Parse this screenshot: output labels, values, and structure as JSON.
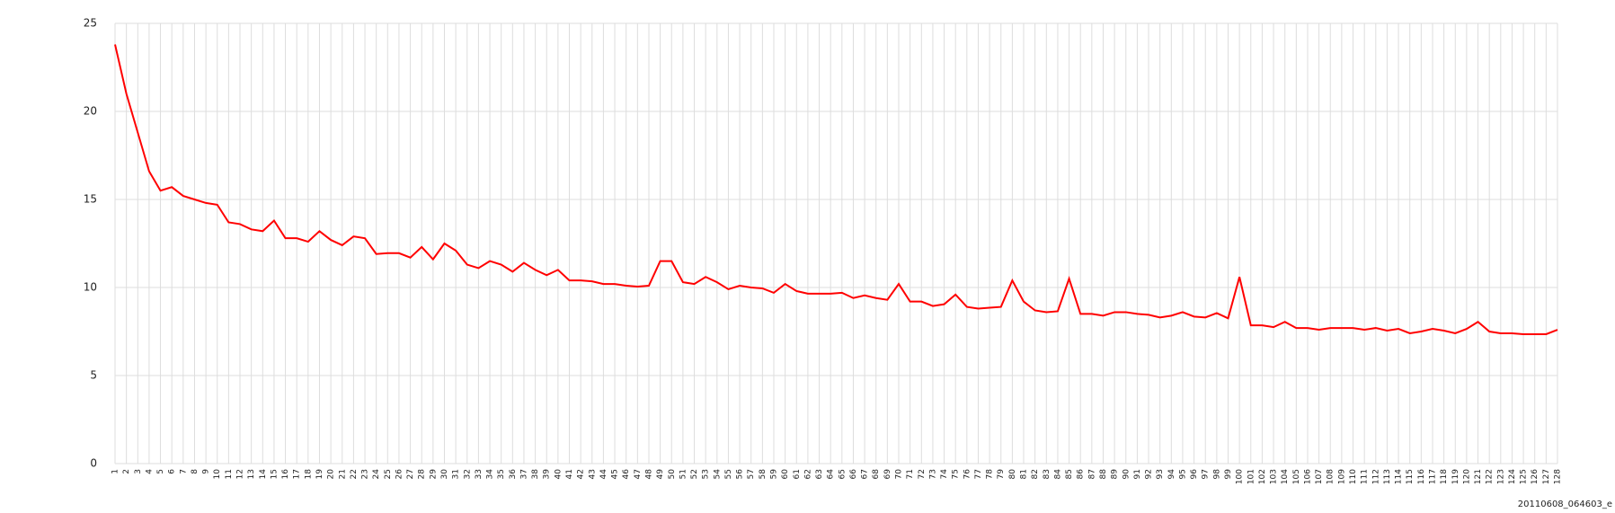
{
  "chart_data": {
    "type": "line",
    "annotation": "20110608_064603_e",
    "categories": [
      "1",
      "2",
      "3",
      "4",
      "5",
      "6",
      "7",
      "8",
      "9",
      "10",
      "11",
      "12",
      "13",
      "14",
      "15",
      "16",
      "17",
      "18",
      "19",
      "20",
      "21",
      "22",
      "23",
      "24",
      "25",
      "26",
      "27",
      "28",
      "29",
      "30",
      "31",
      "32",
      "33",
      "34",
      "35",
      "36",
      "37",
      "38",
      "39",
      "40",
      "41",
      "42",
      "43",
      "44",
      "45",
      "46",
      "47",
      "48",
      "49",
      "50",
      "51",
      "52",
      "53",
      "54",
      "55",
      "56",
      "57",
      "58",
      "59",
      "60",
      "61",
      "62",
      "63",
      "64",
      "65",
      "66",
      "67",
      "68",
      "69",
      "70",
      "71",
      "72",
      "73",
      "74",
      "75",
      "76",
      "77",
      "78",
      "79",
      "80",
      "81",
      "82",
      "83",
      "84",
      "85",
      "86",
      "87",
      "88",
      "89",
      "90",
      "91",
      "92",
      "93",
      "94",
      "95",
      "96",
      "97",
      "98",
      "99",
      "100",
      "101",
      "102",
      "103",
      "104",
      "105",
      "106",
      "107",
      "108",
      "109",
      "110",
      "111",
      "112",
      "113",
      "114",
      "115",
      "116",
      "117",
      "118",
      "119",
      "120",
      "121",
      "122",
      "123",
      "124",
      "125",
      "126",
      "127",
      "128"
    ],
    "values": [
      23.8,
      21.0,
      18.8,
      16.6,
      15.5,
      15.7,
      15.2,
      15.0,
      14.8,
      14.7,
      13.7,
      13.6,
      13.3,
      13.2,
      13.8,
      12.8,
      12.8,
      12.6,
      13.2,
      12.7,
      12.4,
      12.9,
      12.8,
      11.9,
      11.95,
      11.95,
      11.7,
      12.3,
      11.6,
      12.5,
      12.1,
      11.3,
      11.1,
      11.5,
      11.3,
      10.9,
      11.4,
      11.0,
      10.7,
      11.0,
      10.4,
      10.4,
      10.35,
      10.2,
      10.2,
      10.1,
      10.05,
      10.1,
      11.5,
      11.5,
      10.3,
      10.2,
      10.6,
      10.3,
      9.9,
      10.1,
      10.0,
      9.95,
      9.7,
      10.2,
      9.8,
      9.65,
      9.65,
      9.65,
      9.7,
      9.4,
      9.55,
      9.4,
      9.3,
      10.2,
      9.2,
      9.2,
      8.95,
      9.05,
      9.6,
      8.9,
      8.8,
      8.85,
      8.9,
      10.4,
      9.2,
      8.7,
      8.6,
      8.65,
      10.5,
      8.5,
      8.5,
      8.4,
      8.6,
      8.6,
      8.5,
      8.45,
      8.3,
      8.4,
      8.6,
      8.35,
      8.3,
      8.55,
      8.25,
      10.6,
      7.85,
      7.85,
      7.75,
      8.05,
      7.7,
      7.7,
      7.6,
      7.7,
      7.7,
      7.7,
      7.6,
      7.7,
      7.55,
      7.65,
      7.4,
      7.5,
      7.65,
      7.55,
      7.4,
      7.65,
      8.05,
      7.5,
      7.4,
      7.4,
      7.35,
      7.35,
      7.35,
      7.6
    ],
    "color": "#ff0000",
    "ylim": [
      0,
      25
    ],
    "yticks": [
      0,
      5,
      10,
      15,
      20,
      25
    ],
    "grid": true
  }
}
